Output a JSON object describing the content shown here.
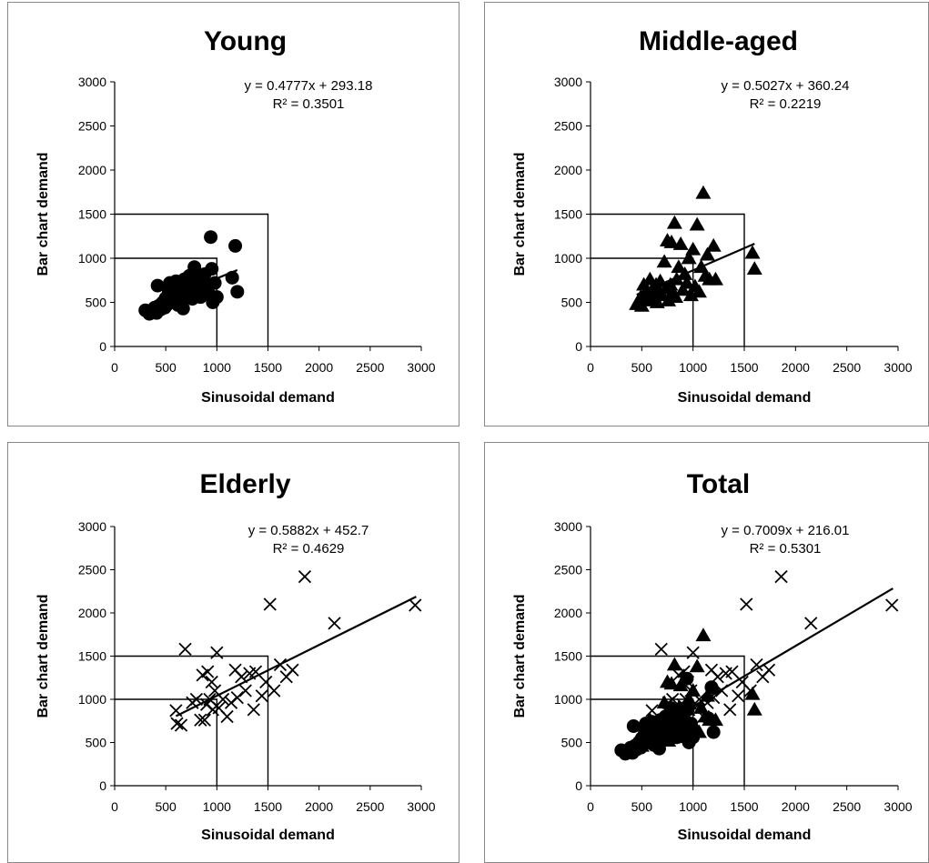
{
  "chart_data": [
    {
      "type": "scatter",
      "title": "Young",
      "xlabel": "Sinusoidal demand",
      "ylabel": "Bar chart demand",
      "xlim": [
        0,
        3000
      ],
      "ylim": [
        0,
        3000
      ],
      "xticks": [
        "0",
        "500",
        "1000",
        "1500",
        "2000",
        "2500",
        "3000"
      ],
      "yticks": [
        "0",
        "500",
        "1000",
        "1500",
        "2000",
        "2500",
        "3000"
      ],
      "marker": "circle",
      "equation": "y = 0.4777x + 293.18",
      "r2": "R² = 0.3501",
      "trendline": {
        "slope": 0.4777,
        "intercept": 293.18,
        "x_range": [
          300,
          1200
        ]
      },
      "reference_boxes": [
        1000,
        1500
      ],
      "grid": false,
      "points": [
        [
          300,
          410
        ],
        [
          340,
          370
        ],
        [
          360,
          400
        ],
        [
          390,
          440
        ],
        [
          410,
          380
        ],
        [
          420,
          690
        ],
        [
          430,
          460
        ],
        [
          450,
          420
        ],
        [
          470,
          500
        ],
        [
          490,
          440
        ],
        [
          500,
          550
        ],
        [
          510,
          470
        ],
        [
          530,
          620
        ],
        [
          540,
          720
        ],
        [
          560,
          510
        ],
        [
          570,
          600
        ],
        [
          590,
          660
        ],
        [
          600,
          740
        ],
        [
          610,
          540
        ],
        [
          620,
          470
        ],
        [
          640,
          580
        ],
        [
          650,
          700
        ],
        [
          660,
          640
        ],
        [
          670,
          430
        ],
        [
          680,
          760
        ],
        [
          700,
          560
        ],
        [
          710,
          680
        ],
        [
          720,
          600
        ],
        [
          730,
          800
        ],
        [
          740,
          720
        ],
        [
          750,
          640
        ],
        [
          760,
          540
        ],
        [
          770,
          700
        ],
        [
          780,
          900
        ],
        [
          800,
          620
        ],
        [
          810,
          780
        ],
        [
          820,
          680
        ],
        [
          840,
          560
        ],
        [
          850,
          740
        ],
        [
          870,
          620
        ],
        [
          880,
          820
        ],
        [
          900,
          700
        ],
        [
          920,
          600
        ],
        [
          940,
          1240
        ],
        [
          950,
          880
        ],
        [
          960,
          500
        ],
        [
          980,
          720
        ],
        [
          1000,
          560
        ],
        [
          1150,
          780
        ],
        [
          1180,
          1140
        ],
        [
          1200,
          620
        ]
      ]
    },
    {
      "type": "scatter",
      "title": "Middle-aged",
      "xlabel": "Sinusoidal demand",
      "ylabel": "Bar chart demand",
      "xlim": [
        0,
        3000
      ],
      "ylim": [
        0,
        3000
      ],
      "xticks": [
        "0",
        "500",
        "1000",
        "1500",
        "2000",
        "2500",
        "3000"
      ],
      "yticks": [
        "0",
        "500",
        "1000",
        "1500",
        "2000",
        "2500",
        "3000"
      ],
      "marker": "triangle",
      "equation": "y = 0.5027x + 360.24",
      "r2": "R² = 0.2219",
      "trendline": {
        "slope": 0.5027,
        "intercept": 360.24,
        "x_range": [
          450,
          1600
        ]
      },
      "reference_boxes": [
        1000,
        1500
      ],
      "grid": false,
      "points": [
        [
          450,
          480
        ],
        [
          470,
          520
        ],
        [
          490,
          560
        ],
        [
          500,
          460
        ],
        [
          520,
          700
        ],
        [
          540,
          620
        ],
        [
          560,
          520
        ],
        [
          580,
          760
        ],
        [
          600,
          640
        ],
        [
          620,
          560
        ],
        [
          640,
          700
        ],
        [
          650,
          500
        ],
        [
          660,
          620
        ],
        [
          680,
          740
        ],
        [
          700,
          580
        ],
        [
          720,
          960
        ],
        [
          740,
          660
        ],
        [
          750,
          1200
        ],
        [
          760,
          520
        ],
        [
          780,
          700
        ],
        [
          790,
          1180
        ],
        [
          800,
          620
        ],
        [
          820,
          1400
        ],
        [
          830,
          560
        ],
        [
          840,
          760
        ],
        [
          860,
          900
        ],
        [
          880,
          1160
        ],
        [
          900,
          640
        ],
        [
          920,
          820
        ],
        [
          940,
          720
        ],
        [
          960,
          1000
        ],
        [
          980,
          580
        ],
        [
          1000,
          1100
        ],
        [
          1020,
          680
        ],
        [
          1040,
          1380
        ],
        [
          1060,
          620
        ],
        [
          1080,
          900
        ],
        [
          1100,
          1740
        ],
        [
          1120,
          800
        ],
        [
          1140,
          1040
        ],
        [
          1160,
          760
        ],
        [
          1200,
          1140
        ],
        [
          1220,
          760
        ],
        [
          1580,
          1060
        ],
        [
          1600,
          880
        ]
      ]
    },
    {
      "type": "scatter",
      "title": "Elderly",
      "xlabel": "Sinusoidal demand",
      "ylabel": "Bar chart demand",
      "xlim": [
        0,
        3000
      ],
      "ylim": [
        0,
        3000
      ],
      "xticks": [
        "0",
        "500",
        "1000",
        "1500",
        "2000",
        "2500",
        "3000"
      ],
      "yticks": [
        "0",
        "500",
        "1000",
        "1500",
        "2000",
        "2500",
        "3000"
      ],
      "marker": "x",
      "equation": "y = 0.5882x + 452.7",
      "r2": "R² = 0.4629",
      "trendline": {
        "slope": 0.5882,
        "intercept": 452.7,
        "x_range": [
          600,
          2950
        ]
      },
      "reference_boxes": [
        1000,
        1500
      ],
      "grid": false,
      "points": [
        [
          600,
          870
        ],
        [
          610,
          720
        ],
        [
          650,
          700
        ],
        [
          690,
          1580
        ],
        [
          760,
          960
        ],
        [
          800,
          1000
        ],
        [
          840,
          760
        ],
        [
          860,
          1280
        ],
        [
          880,
          760
        ],
        [
          900,
          940
        ],
        [
          910,
          1320
        ],
        [
          930,
          1000
        ],
        [
          950,
          1200
        ],
        [
          960,
          880
        ],
        [
          980,
          1100
        ],
        [
          1000,
          1540
        ],
        [
          1020,
          900
        ],
        [
          1060,
          1000
        ],
        [
          1100,
          800
        ],
        [
          1140,
          960
        ],
        [
          1180,
          1340
        ],
        [
          1200,
          1020
        ],
        [
          1240,
          1260
        ],
        [
          1280,
          1100
        ],
        [
          1320,
          1300
        ],
        [
          1360,
          880
        ],
        [
          1380,
          1320
        ],
        [
          1440,
          1040
        ],
        [
          1480,
          1200
        ],
        [
          1520,
          2100
        ],
        [
          1560,
          1100
        ],
        [
          1620,
          1400
        ],
        [
          1680,
          1260
        ],
        [
          1740,
          1340
        ],
        [
          1860,
          2420
        ],
        [
          2150,
          1880
        ],
        [
          2940,
          2090
        ]
      ]
    },
    {
      "type": "scatter",
      "title": "Total",
      "xlabel": "Sinusoidal demand",
      "ylabel": "Bar chart demand",
      "xlim": [
        0,
        3000
      ],
      "ylim": [
        0,
        3000
      ],
      "xticks": [
        "0",
        "500",
        "1000",
        "1500",
        "2000",
        "2500",
        "3000"
      ],
      "yticks": [
        "0",
        "500",
        "1000",
        "1500",
        "2000",
        "2500",
        "3000"
      ],
      "marker": "combined",
      "combined_from": [
        0,
        1,
        2
      ],
      "equation": "y = 0.7009x + 216.01",
      "r2": "R² = 0.5301",
      "trendline": {
        "slope": 0.7009,
        "intercept": 216.01,
        "x_range": [
          300,
          2950
        ]
      },
      "reference_boxes": [
        1000,
        1500
      ],
      "grid": false,
      "points": []
    }
  ]
}
